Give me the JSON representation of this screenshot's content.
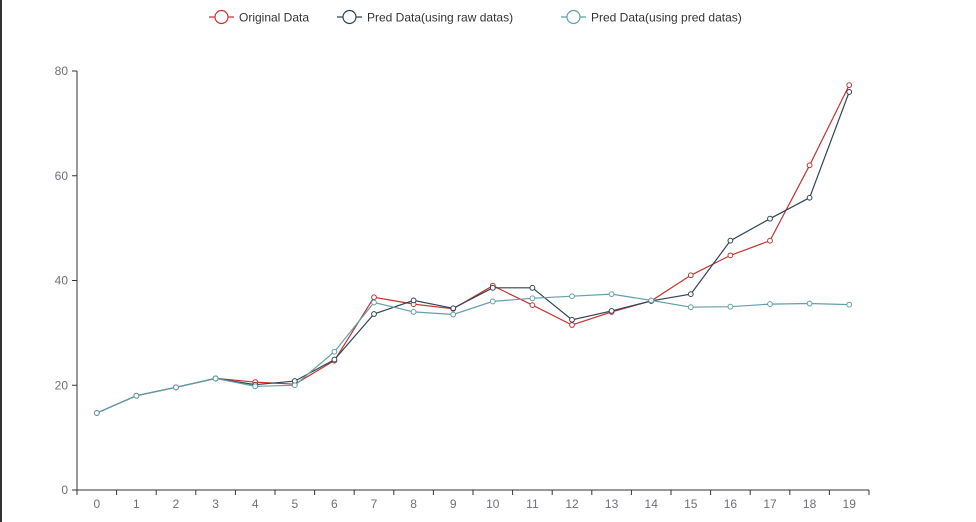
{
  "chart_data": {
    "type": "line",
    "title": "",
    "xlabel": "",
    "ylabel": "",
    "categories": [
      "0",
      "1",
      "2",
      "3",
      "4",
      "5",
      "6",
      "7",
      "8",
      "9",
      "10",
      "11",
      "12",
      "13",
      "14",
      "15",
      "16",
      "17",
      "18",
      "19"
    ],
    "ylim": [
      0,
      80
    ],
    "yticks": [
      0,
      20,
      40,
      60,
      80
    ],
    "grid": false,
    "legend_position": "top-center",
    "series": [
      {
        "name": "Original Data",
        "color": "#c23531",
        "values": [
          14.7,
          18.0,
          19.6,
          21.3,
          20.6,
          20.2,
          24.7,
          36.8,
          35.5,
          34.6,
          39.0,
          35.3,
          31.5,
          34.0,
          36.1,
          41.0,
          44.8,
          47.6,
          62.0,
          77.3
        ]
      },
      {
        "name": "Pred Data(using raw datas)",
        "color": "#2f4554",
        "values": [
          14.7,
          18.0,
          19.6,
          21.3,
          20.1,
          20.8,
          24.9,
          33.6,
          36.2,
          34.7,
          38.6,
          38.6,
          32.5,
          34.2,
          36.1,
          37.4,
          47.6,
          51.8,
          55.8,
          76.0
        ]
      },
      {
        "name": "Pred Data(using pred datas)",
        "color": "#61a0a8",
        "values": [
          14.7,
          18.0,
          19.6,
          21.3,
          19.8,
          20.0,
          26.4,
          35.8,
          34.0,
          33.5,
          36.0,
          36.6,
          37.0,
          37.4,
          36.2,
          34.9,
          35.0,
          35.5,
          35.6,
          35.4
        ]
      }
    ]
  }
}
